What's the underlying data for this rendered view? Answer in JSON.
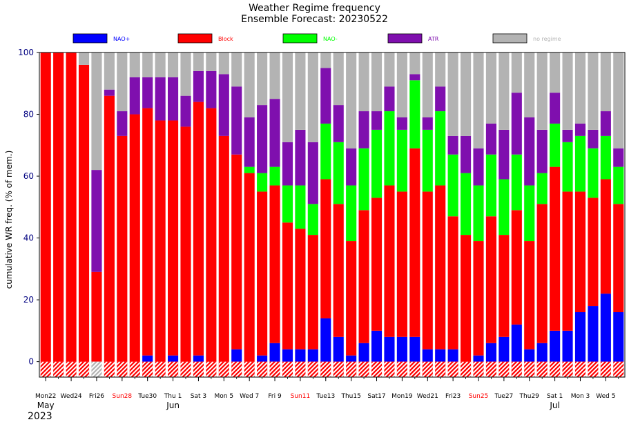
{
  "chart_data": {
    "type": "bar",
    "stacked": true,
    "title": "Weather Regime frequency",
    "subtitle": "Ensemble Forecast: 20230522",
    "ylabel": "cumulative WR freq. (% of mem.)",
    "xlabel": "",
    "ylim": [
      -5,
      100
    ],
    "yticks": [
      0,
      20,
      40,
      60,
      80,
      100
    ],
    "grid": false,
    "legend_position": "top",
    "categories": [
      "2023-05-22",
      "2023-05-23",
      "2023-05-24",
      "2023-05-25",
      "2023-05-26",
      "2023-05-27",
      "2023-05-28",
      "2023-05-29",
      "2023-05-30",
      "2023-05-31",
      "2023-06-01",
      "2023-06-02",
      "2023-06-03",
      "2023-06-04",
      "2023-06-05",
      "2023-06-06",
      "2023-06-07",
      "2023-06-08",
      "2023-06-09",
      "2023-06-10",
      "2023-06-11",
      "2023-06-12",
      "2023-06-13",
      "2023-06-14",
      "2023-06-15",
      "2023-06-16",
      "2023-06-17",
      "2023-06-18",
      "2023-06-19",
      "2023-06-20",
      "2023-06-21",
      "2023-06-22",
      "2023-06-23",
      "2023-06-24",
      "2023-06-25",
      "2023-06-26",
      "2023-06-27",
      "2023-06-28",
      "2023-06-29",
      "2023-06-30",
      "2023-07-01",
      "2023-07-02",
      "2023-07-03",
      "2023-07-04",
      "2023-07-05",
      "2023-07-06"
    ],
    "series": [
      {
        "name": "NAO+",
        "color": "#0000ff",
        "values": [
          0,
          0,
          0,
          0,
          0,
          0,
          0,
          0,
          2,
          0,
          2,
          0,
          2,
          0,
          0,
          4,
          0,
          2,
          6,
          4,
          4,
          4,
          14,
          8,
          2,
          6,
          10,
          8,
          8,
          8,
          4,
          4,
          4,
          0,
          2,
          6,
          8,
          12,
          4,
          6,
          10,
          10,
          16,
          18,
          22,
          16
        ]
      },
      {
        "name": "Block",
        "color": "#ff0000",
        "values": [
          100,
          100,
          100,
          96,
          29,
          86,
          73,
          80,
          80,
          78,
          76,
          76,
          82,
          82,
          73,
          63,
          61,
          53,
          51,
          41,
          39,
          37,
          45,
          43,
          37,
          43,
          43,
          49,
          47,
          61,
          51,
          53,
          43,
          41,
          37,
          41,
          33,
          37,
          35,
          45,
          53,
          45,
          39,
          35,
          37,
          35
        ]
      },
      {
        "name": "NAO-",
        "color": "#00ff00",
        "values": [
          0,
          0,
          0,
          0,
          0,
          0,
          0,
          0,
          0,
          0,
          0,
          0,
          0,
          0,
          0,
          0,
          2,
          6,
          6,
          12,
          14,
          10,
          18,
          20,
          18,
          20,
          22,
          24,
          20,
          22,
          20,
          24,
          20,
          20,
          18,
          20,
          18,
          18,
          18,
          10,
          14,
          16,
          18,
          16,
          14,
          12
        ]
      },
      {
        "name": "ATR",
        "color": "#7f0fae",
        "values": [
          0,
          0,
          0,
          0,
          33,
          2,
          8,
          12,
          10,
          14,
          14,
          10,
          10,
          12,
          20,
          22,
          16,
          22,
          22,
          14,
          18,
          20,
          18,
          12,
          12,
          12,
          6,
          8,
          4,
          2,
          4,
          8,
          6,
          12,
          12,
          10,
          16,
          20,
          22,
          14,
          10,
          4,
          4,
          6,
          8,
          6
        ]
      },
      {
        "name": "no regime",
        "color": "#b3b3b3",
        "values": [
          0,
          0,
          0,
          4,
          38,
          12,
          19,
          8,
          8,
          8,
          8,
          14,
          6,
          6,
          7,
          11,
          21,
          17,
          15,
          29,
          25,
          29,
          5,
          17,
          31,
          19,
          19,
          11,
          21,
          7,
          21,
          11,
          27,
          27,
          31,
          23,
          25,
          13,
          21,
          25,
          13,
          25,
          23,
          25,
          19,
          31
        ]
      }
    ],
    "hatch_row": {
      "description_from_image": "bottom band below zero",
      "colors": [
        "#ff0000",
        "#ff0000",
        "#ff0000",
        "#ff0000",
        "#b3b3b3",
        "#ff0000",
        "#ff0000",
        "#ff0000",
        "#ff0000",
        "#ff0000",
        "#ff0000",
        "#ff0000",
        "#ff0000",
        "#ff0000",
        "#ff0000",
        "#ff0000",
        "#ff0000",
        "#ff0000",
        "#ff0000",
        "#ff0000",
        "#ff0000",
        "#ff0000",
        "#ff0000",
        "#ff0000",
        "#ff0000",
        "#ff0000",
        "#ff0000",
        "#ff0000",
        "#ff0000",
        "#ff0000",
        "#ff0000",
        "#ff0000",
        "#ff0000",
        "#ff0000",
        "#ff0000",
        "#ff0000",
        "#ff0000",
        "#ff0000",
        "#ff0000",
        "#ff0000",
        "#ff0000",
        "#ff0000",
        "#ff0000",
        "#ff0000",
        "#ff0000",
        "#ff0000"
      ]
    },
    "x_tick_labels": [
      {
        "index": 0,
        "text": "Mon22",
        "color": "#000000"
      },
      {
        "index": 2,
        "text": "Wed24",
        "color": "#000000"
      },
      {
        "index": 4,
        "text": "Fri26",
        "color": "#000000"
      },
      {
        "index": 6,
        "text": "Sun28",
        "color": "#ff0000"
      },
      {
        "index": 8,
        "text": "Tue30",
        "color": "#000000"
      },
      {
        "index": 10,
        "text": "Thu 1",
        "color": "#000000"
      },
      {
        "index": 12,
        "text": "Sat 3",
        "color": "#000000"
      },
      {
        "index": 14,
        "text": "Mon 5",
        "color": "#000000"
      },
      {
        "index": 16,
        "text": "Wed 7",
        "color": "#000000"
      },
      {
        "index": 18,
        "text": "Fri 9",
        "color": "#000000"
      },
      {
        "index": 20,
        "text": "Sun11",
        "color": "#ff0000"
      },
      {
        "index": 22,
        "text": "Tue13",
        "color": "#000000"
      },
      {
        "index": 24,
        "text": "Thu15",
        "color": "#000000"
      },
      {
        "index": 26,
        "text": "Sat17",
        "color": "#000000"
      },
      {
        "index": 28,
        "text": "Mon19",
        "color": "#000000"
      },
      {
        "index": 30,
        "text": "Wed21",
        "color": "#000000"
      },
      {
        "index": 32,
        "text": "Fri23",
        "color": "#000000"
      },
      {
        "index": 34,
        "text": "Sun25",
        "color": "#ff0000"
      },
      {
        "index": 36,
        "text": "Tue27",
        "color": "#000000"
      },
      {
        "index": 38,
        "text": "Thu29",
        "color": "#000000"
      },
      {
        "index": 40,
        "text": "Sat 1",
        "color": "#000000"
      },
      {
        "index": 42,
        "text": "Mon 3",
        "color": "#000000"
      },
      {
        "index": 44,
        "text": "Wed 5",
        "color": "#000000"
      }
    ],
    "month_labels": [
      {
        "index": 0,
        "text": "May"
      },
      {
        "index": 10,
        "text": "Jun"
      },
      {
        "index": 40,
        "text": "Jul"
      }
    ],
    "year_label": "2023",
    "legend": [
      {
        "name": "NAO+",
        "color": "#0000ff",
        "text_color": "#0000ff"
      },
      {
        "name": "Block",
        "color": "#ff0000",
        "text_color": "#ff0000"
      },
      {
        "name": "NAO-",
        "color": "#00ff00",
        "text_color": "#00ff00"
      },
      {
        "name": "ATR",
        "color": "#7f0fae",
        "text_color": "#7f0fae"
      },
      {
        "name": "no regime",
        "color": "#b3b3b3",
        "text_color": "#b3b3b3"
      }
    ],
    "colors": {
      "axis": "#000080",
      "background": "#ffffff"
    }
  }
}
